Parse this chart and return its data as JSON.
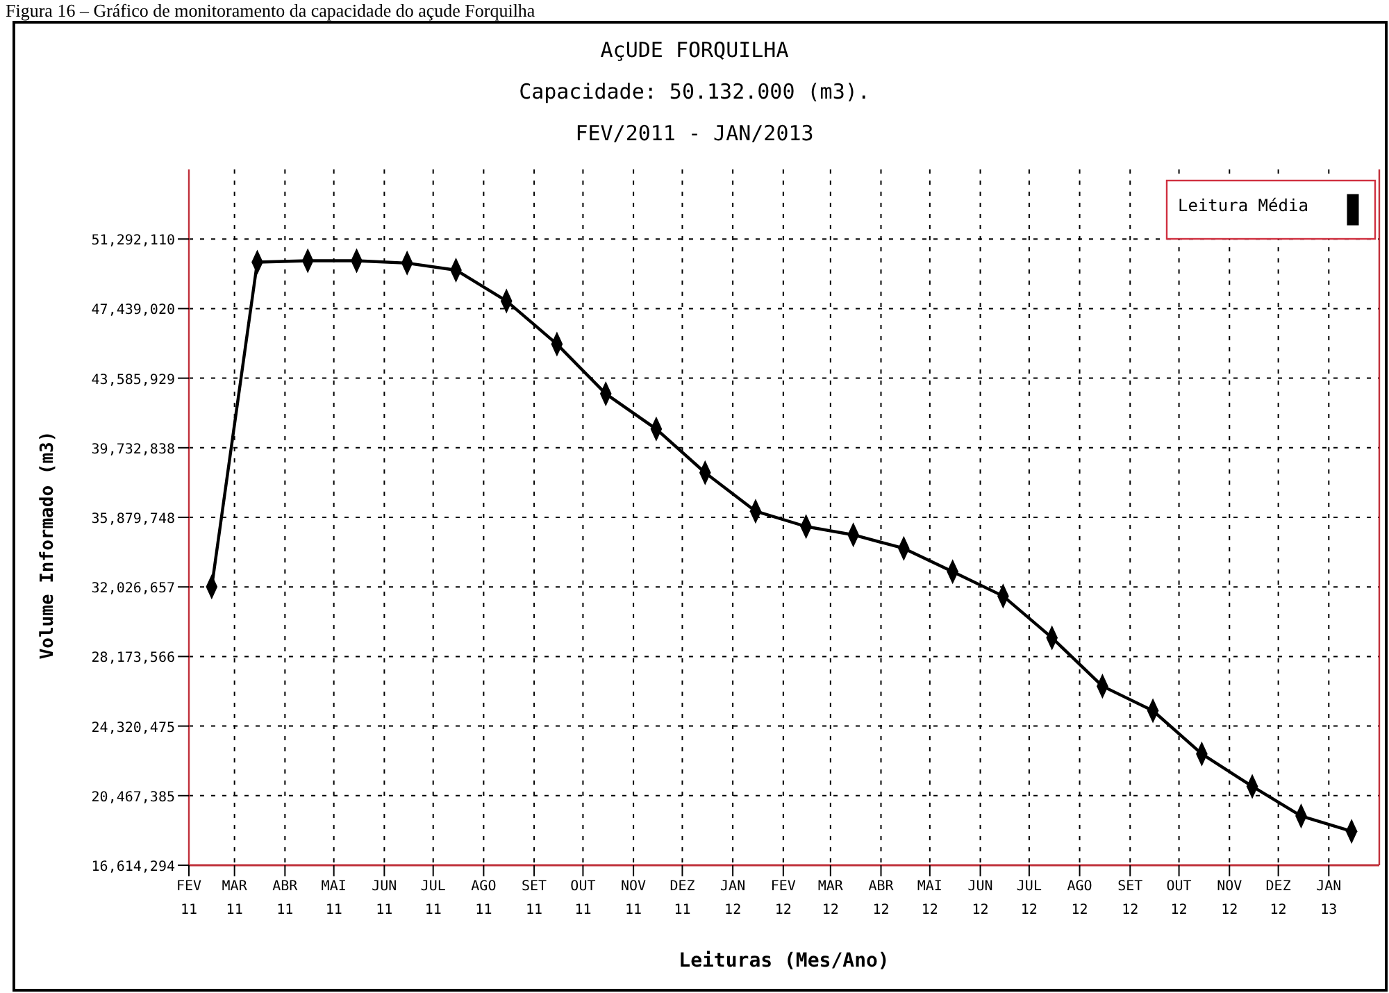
{
  "chart_data": {
    "type": "line",
    "title": "AçUDE FORQUILHA",
    "subtitle": "Capacidade: 50.132.000 (m3).\nFEV/2011 - JAN/2013",
    "xlabel": "Leituras (Mes/Ano)",
    "ylabel": "Volume Informado (m3)",
    "annotations": [
      "Figura 16 – Gráfico de monitoramento da capacidade do açude Forquilha"
    ],
    "x": [
      "2011-02-15",
      "2011-03-15",
      "2011-04-15",
      "2011-05-15",
      "2011-06-15",
      "2011-07-15",
      "2011-08-15",
      "2011-09-15",
      "2011-10-15",
      "2011-11-15",
      "2011-12-15",
      "2012-01-15",
      "2012-02-15",
      "2012-03-15",
      "2012-04-15",
      "2012-05-15",
      "2012-06-15",
      "2012-07-15",
      "2012-08-15",
      "2012-09-15",
      "2012-10-15",
      "2012-11-15",
      "2012-12-15",
      "2013-01-15"
    ],
    "series": [
      {
        "name": "Leitura Média",
        "color": "#000000",
        "values": [
          32030000,
          50010000,
          50090000,
          50090000,
          49960000,
          49570000,
          47860000,
          45470000,
          42720000,
          40770000,
          38350000,
          36220000,
          35370000,
          34910000,
          34160000,
          32870000,
          31520000,
          29210000,
          26530000,
          25170000,
          22780000,
          20980000,
          19340000,
          18490000
        ]
      }
    ],
    "xlim": [
      "2011-02-01",
      "2013-02-01"
    ],
    "xticks": [
      {
        "value": "2011-02-01",
        "label": "FEV\n11"
      },
      {
        "value": "2011-03-01",
        "label": "MAR\n11"
      },
      {
        "value": "2011-04-01",
        "label": "ABR\n11"
      },
      {
        "value": "2011-05-01",
        "label": "MAI\n11"
      },
      {
        "value": "2011-06-01",
        "label": "JUN\n11"
      },
      {
        "value": "2011-07-01",
        "label": "JUL\n11"
      },
      {
        "value": "2011-08-01",
        "label": "AGO\n11"
      },
      {
        "value": "2011-09-01",
        "label": "SET\n11"
      },
      {
        "value": "2011-10-01",
        "label": "OUT\n11"
      },
      {
        "value": "2011-11-01",
        "label": "NOV\n11"
      },
      {
        "value": "2011-12-01",
        "label": "DEZ\n11"
      },
      {
        "value": "2012-01-01",
        "label": "JAN\n12"
      },
      {
        "value": "2012-02-01",
        "label": "FEV\n12"
      },
      {
        "value": "2012-03-01",
        "label": "MAR\n12"
      },
      {
        "value": "2012-04-01",
        "label": "ABR\n12"
      },
      {
        "value": "2012-05-01",
        "label": "MAI\n12"
      },
      {
        "value": "2012-06-01",
        "label": "JUN\n12"
      },
      {
        "value": "2012-07-01",
        "label": "JUL\n12"
      },
      {
        "value": "2012-08-01",
        "label": "AGO\n12"
      },
      {
        "value": "2012-09-01",
        "label": "SET\n12"
      },
      {
        "value": "2012-10-01",
        "label": "OUT\n12"
      },
      {
        "value": "2012-11-01",
        "label": "NOV\n12"
      },
      {
        "value": "2012-12-01",
        "label": "DEZ\n12"
      },
      {
        "value": "2013-01-01",
        "label": "JAN\n13"
      }
    ],
    "ylim": [
      16614294,
      55145201
    ],
    "yticks": [
      {
        "value": 16614294,
        "label": "16,614,294"
      },
      {
        "value": 20467385,
        "label": "20,467,385"
      },
      {
        "value": 24320475,
        "label": "24,320,475"
      },
      {
        "value": 28173566,
        "label": "28,173,566"
      },
      {
        "value": 32026657,
        "label": "32,026,657"
      },
      {
        "value": 35879748,
        "label": "35,879,748"
      },
      {
        "value": 39732838,
        "label": "39,732,838"
      },
      {
        "value": 43585929,
        "label": "43,585,929"
      },
      {
        "value": 47439020,
        "label": "47,439,020"
      },
      {
        "value": 51292110,
        "label": "51,292,110"
      }
    ],
    "grid": true,
    "legend": "top right",
    "marker": "diamond",
    "line_style": "solid"
  }
}
